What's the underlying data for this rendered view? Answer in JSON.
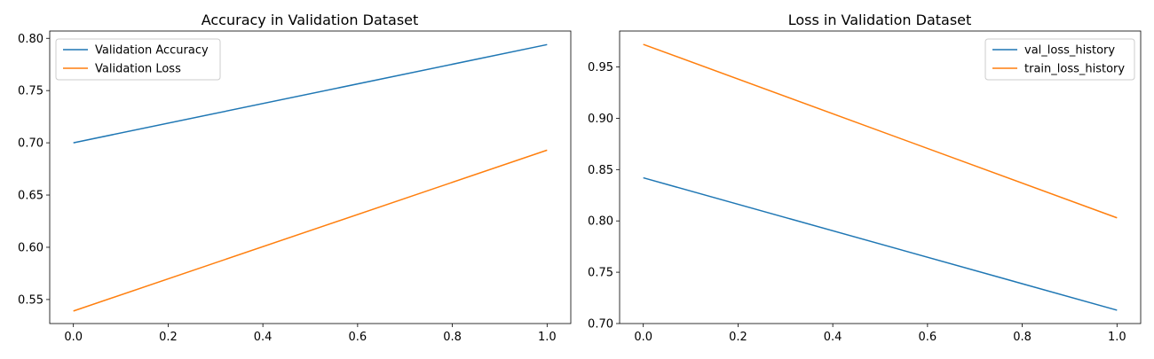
{
  "chart_data": [
    {
      "type": "line",
      "title": "Accuracy in Validation Dataset",
      "xlabel": "",
      "ylabel": "",
      "xlim": [
        -0.05,
        1.05
      ],
      "ylim": [
        0.527,
        0.807
      ],
      "xticks": [
        0.0,
        0.2,
        0.4,
        0.6,
        0.8,
        1.0
      ],
      "xtick_labels": [
        "0.0",
        "0.2",
        "0.4",
        "0.6",
        "0.8",
        "1.0"
      ],
      "yticks": [
        0.55,
        0.6,
        0.65,
        0.7,
        0.75,
        0.8
      ],
      "ytick_labels": [
        "0.55",
        "0.60",
        "0.65",
        "0.70",
        "0.75",
        "0.80"
      ],
      "grid": false,
      "legend_position": "upper-left",
      "series": [
        {
          "name": "Validation Accuracy",
          "color": "#1f77b4",
          "x": [
            0,
            1
          ],
          "y": [
            0.7,
            0.794
          ]
        },
        {
          "name": "Validation Loss",
          "color": "#ff7f0e",
          "x": [
            0,
            1
          ],
          "y": [
            0.539,
            0.693
          ]
        }
      ]
    },
    {
      "type": "line",
      "title": "Loss in Validation Dataset",
      "xlabel": "",
      "ylabel": "",
      "xlim": [
        -0.05,
        1.05
      ],
      "ylim": [
        0.7,
        0.985
      ],
      "xticks": [
        0.0,
        0.2,
        0.4,
        0.6,
        0.8,
        1.0
      ],
      "xtick_labels": [
        "0.0",
        "0.2",
        "0.4",
        "0.6",
        "0.8",
        "1.0"
      ],
      "yticks": [
        0.7,
        0.75,
        0.8,
        0.85,
        0.9,
        0.95
      ],
      "ytick_labels": [
        "0.70",
        "0.75",
        "0.80",
        "0.85",
        "0.90",
        "0.95"
      ],
      "grid": false,
      "legend_position": "upper-right",
      "series": [
        {
          "name": "val_loss_history",
          "color": "#1f77b4",
          "x": [
            0,
            1
          ],
          "y": [
            0.842,
            0.713
          ]
        },
        {
          "name": "train_loss_history",
          "color": "#ff7f0e",
          "x": [
            0,
            1
          ],
          "y": [
            0.972,
            0.803
          ]
        }
      ]
    }
  ]
}
